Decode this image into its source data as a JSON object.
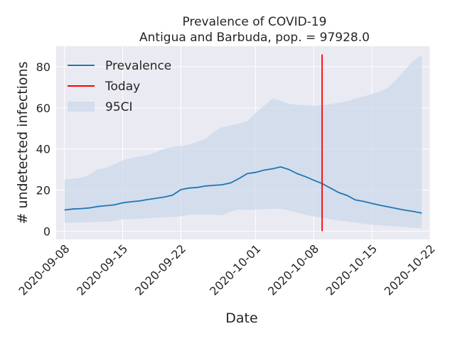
{
  "chart_data": {
    "type": "line",
    "title": "Prevalence of COVID-19",
    "subtitle": "Antigua and Barbuda, pop. = 97928.0",
    "xlabel": "Date",
    "ylabel": "# undetected infections",
    "xlim": [
      "2020-09-07",
      "2020-10-22"
    ],
    "ylim": [
      -4,
      90
    ],
    "x_ticks": [
      "2020-09-08",
      "2020-09-15",
      "2020-09-22",
      "2020-10-01",
      "2020-10-08",
      "2020-10-15",
      "2020-10-22"
    ],
    "y_ticks": [
      0,
      20,
      40,
      60,
      80
    ],
    "grid": true,
    "legend": {
      "position": "top-left",
      "entries": [
        "Prevalence",
        "Today",
        "95CI"
      ]
    },
    "today": "2020-10-09",
    "today_y_range": [
      0,
      86
    ],
    "colors": {
      "prevalence": "#1f77b4",
      "today": "#ff0000",
      "ci": "#c9d7ea",
      "plot_bg": "#eaeaf2"
    },
    "x": [
      "2020-09-08",
      "2020-09-09",
      "2020-09-10",
      "2020-09-11",
      "2020-09-12",
      "2020-09-13",
      "2020-09-14",
      "2020-09-15",
      "2020-09-16",
      "2020-09-17",
      "2020-09-18",
      "2020-09-19",
      "2020-09-20",
      "2020-09-21",
      "2020-09-22",
      "2020-09-23",
      "2020-09-24",
      "2020-09-25",
      "2020-09-26",
      "2020-09-27",
      "2020-09-28",
      "2020-09-29",
      "2020-09-30",
      "2020-10-01",
      "2020-10-02",
      "2020-10-03",
      "2020-10-04",
      "2020-10-05",
      "2020-10-06",
      "2020-10-07",
      "2020-10-08",
      "2020-10-09",
      "2020-10-10",
      "2020-10-11",
      "2020-10-12",
      "2020-10-13",
      "2020-10-14",
      "2020-10-15",
      "2020-10-16",
      "2020-10-17",
      "2020-10-18",
      "2020-10-19",
      "2020-10-20",
      "2020-10-21"
    ],
    "series": [
      {
        "name": "Prevalence",
        "values": [
          10.3,
          10.8,
          11.0,
          11.3,
          12.0,
          12.4,
          12.8,
          13.8,
          14.3,
          14.7,
          15.4,
          16.0,
          16.6,
          17.5,
          20.2,
          21.0,
          21.3,
          22.0,
          22.3,
          22.6,
          23.5,
          25.6,
          28.0,
          28.6,
          29.7,
          30.3,
          31.3,
          30.0,
          28.0,
          26.5,
          24.8,
          23.2,
          21.0,
          18.8,
          17.4,
          15.2,
          14.5,
          13.5,
          12.6,
          11.8,
          11.0,
          10.2,
          9.6,
          8.8
        ]
      },
      {
        "name": "95CI",
        "lower": [
          4.0,
          4.2,
          4.3,
          4.4,
          4.5,
          4.6,
          5.0,
          5.8,
          5.9,
          6.0,
          6.3,
          6.6,
          6.8,
          6.9,
          7.2,
          8.0,
          8.2,
          8.1,
          8.0,
          7.8,
          9.5,
          10.5,
          10.3,
          10.5,
          10.8,
          10.9,
          11.0,
          10.0,
          9.0,
          8.0,
          7.2,
          6.5,
          5.8,
          5.2,
          4.7,
          4.2,
          3.6,
          3.2,
          2.9,
          2.6,
          2.3,
          2.0,
          1.7,
          1.4
        ],
        "upper": [
          25.0,
          25.5,
          26.0,
          27.5,
          30.0,
          30.8,
          32.5,
          34.5,
          35.5,
          36.3,
          37.0,
          38.5,
          40.0,
          41.0,
          41.5,
          42.0,
          43.5,
          45.0,
          48.5,
          50.5,
          51.5,
          52.3,
          53.5,
          57.5,
          61.0,
          64.5,
          63.5,
          62.0,
          61.5,
          61.2,
          61.0,
          61.2,
          61.8,
          62.5,
          63.3,
          64.5,
          65.5,
          66.8,
          68.0,
          70.0,
          74.0,
          78.5,
          83.0,
          85.5
        ]
      }
    ]
  }
}
